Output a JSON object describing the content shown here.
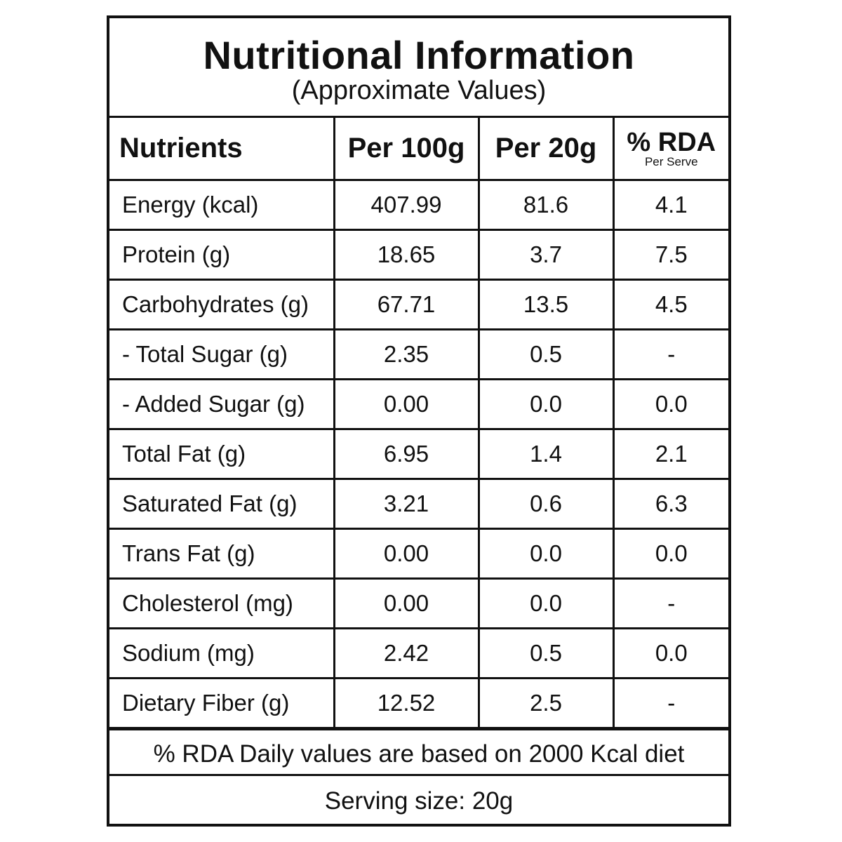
{
  "title": "Nutritional Information",
  "subtitle": "(Approximate Values)",
  "headers": {
    "nutrients": "Nutrients",
    "per100": "Per 100g",
    "per20": "Per 20g",
    "rda": "% RDA",
    "rda_sub": "Per Serve"
  },
  "rows": [
    {
      "name": "Energy (kcal)",
      "per100": "407.99",
      "per20": "81.6",
      "rda": "4.1"
    },
    {
      "name": "Protein (g)",
      "per100": "18.65",
      "per20": "3.7",
      "rda": "7.5"
    },
    {
      "name": "Carbohydrates (g)",
      "per100": "67.71",
      "per20": "13.5",
      "rda": "4.5"
    },
    {
      "name": "- Total Sugar (g)",
      "per100": "2.35",
      "per20": "0.5",
      "rda": "-"
    },
    {
      "name": "- Added Sugar (g)",
      "per100": "0.00",
      "per20": "0.0",
      "rda": "0.0"
    },
    {
      "name": "Total Fat (g)",
      "per100": "6.95",
      "per20": "1.4",
      "rda": "2.1"
    },
    {
      "name": "Saturated Fat (g)",
      "per100": "3.21",
      "per20": "0.6",
      "rda": "6.3"
    },
    {
      "name": "Trans Fat (g)",
      "per100": "0.00",
      "per20": "0.0",
      "rda": "0.0"
    },
    {
      "name": "Cholesterol (mg)",
      "per100": "0.00",
      "per20": "0.0",
      "rda": "-"
    },
    {
      "name": "Sodium (mg)",
      "per100": "2.42",
      "per20": "0.5",
      "rda": "0.0"
    },
    {
      "name": "Dietary Fiber (g)",
      "per100": "12.52",
      "per20": "2.5",
      "rda": "-"
    }
  ],
  "footer_note": "% RDA Daily values are based on 2000 Kcal diet",
  "serving": "Serving size: 20g"
}
